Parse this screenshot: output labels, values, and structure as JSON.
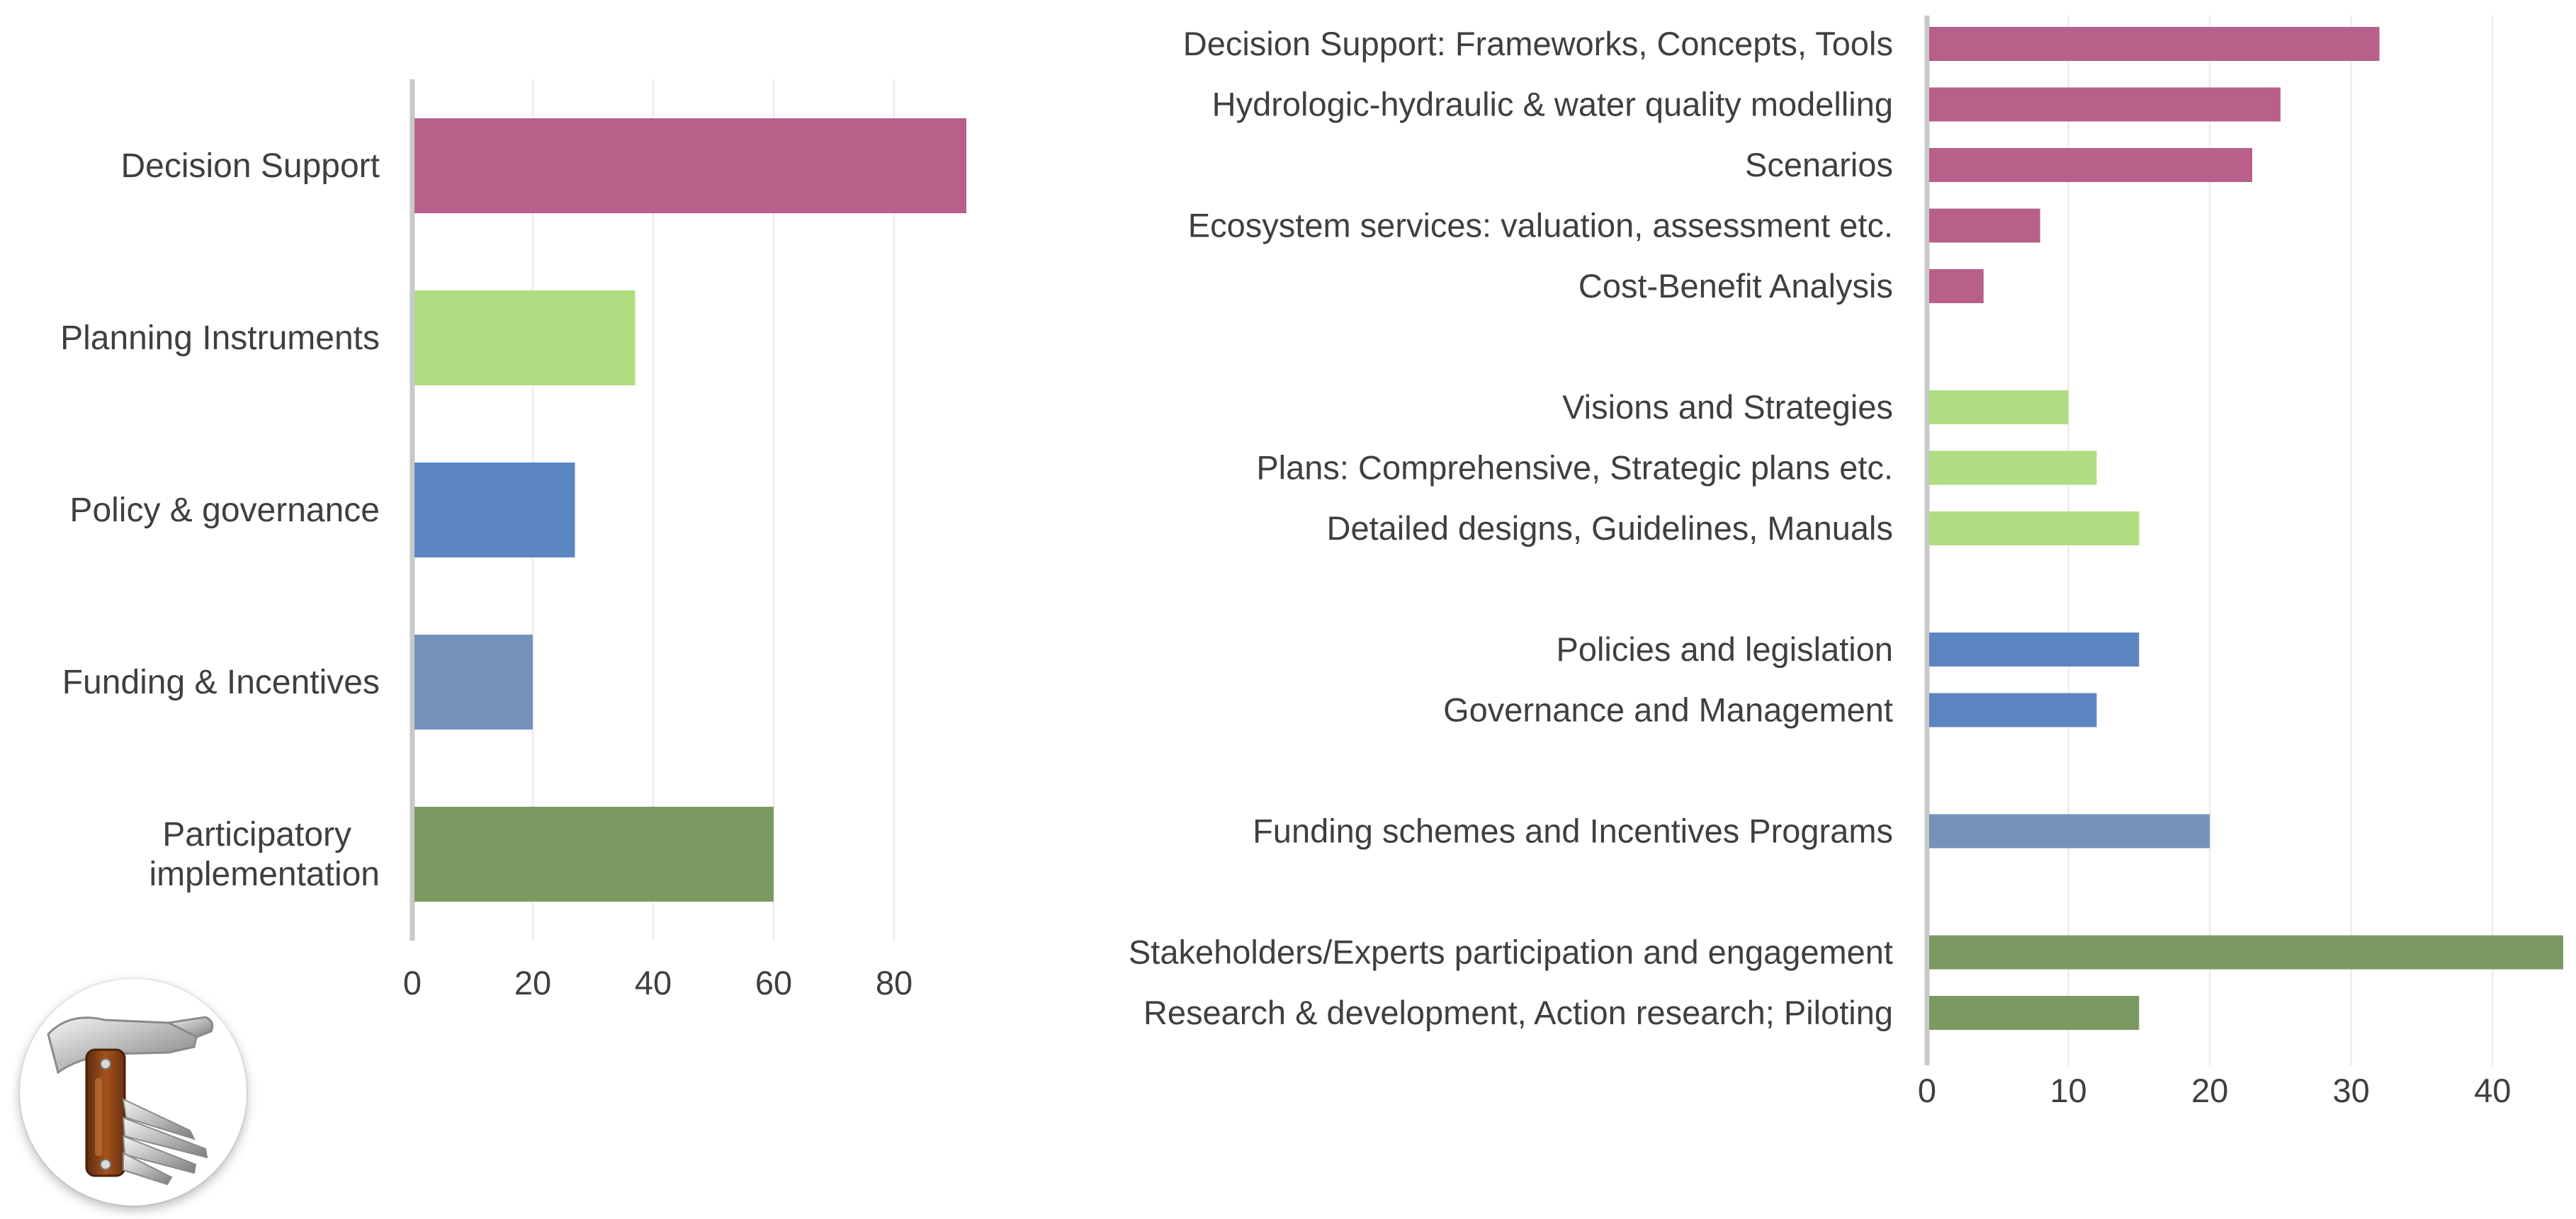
{
  "chart_data": [
    {
      "type": "bar",
      "orientation": "horizontal",
      "title": "",
      "xlabel": "",
      "ylabel": "",
      "xlim": [
        0,
        92
      ],
      "ticks": [
        0,
        20,
        40,
        60,
        80
      ],
      "grid": true,
      "categories": [
        {
          "label": "Decision Support",
          "value": 92,
          "color": "#b8608a"
        },
        {
          "label": "Planning  Instruments",
          "value": 37,
          "color": "#b1dd82"
        },
        {
          "label": "Policy & governance",
          "value": 27,
          "color": "#5b86c2"
        },
        {
          "label": "Funding & Incentives",
          "value": 20,
          "color": "#7592bd"
        },
        {
          "label": "Participatory implementation",
          "lines": [
            "Participatory",
            "implementation"
          ],
          "value": 60,
          "color": "#7a9a62"
        }
      ]
    },
    {
      "type": "bar",
      "orientation": "horizontal",
      "title": "",
      "xlabel": "",
      "ylabel": "",
      "xlim": [
        0,
        45
      ],
      "ticks": [
        0,
        10,
        20,
        30,
        40
      ],
      "grid": true,
      "groups": [
        {
          "color": "#b8608a",
          "items": [
            {
              "label": "Decision Support: Frameworks, Concepts, Tools",
              "value": 32
            },
            {
              "label": "Hydrologic-hydraulic  & water quality  modelling",
              "value": 25
            },
            {
              "label": "Scenarios",
              "value": 23
            },
            {
              "label": "Ecosystem services: valuation,  assessment etc.",
              "value": 8
            },
            {
              "label": "Cost-Benefit Analysis",
              "value": 4
            }
          ]
        },
        {
          "color": "#b1dd82",
          "items": [
            {
              "label": "Visions and Strategies",
              "value": 10
            },
            {
              "label": "Plans: Comprehensive, Strategic plans etc.",
              "value": 12
            },
            {
              "label": "Detailed designs, Guidelines, Manuals",
              "value": 15
            }
          ]
        },
        {
          "color": "#5b86c2",
          "items": [
            {
              "label": "Policies and legislation",
              "value": 15
            },
            {
              "label": "Governance and Management",
              "value": 12
            }
          ]
        },
        {
          "color": "#7592bd",
          "items": [
            {
              "label": "Funding schemes and Incentives Programs",
              "value": 20
            }
          ]
        },
        {
          "color": "#7a9a62",
          "items": [
            {
              "label": "Stakeholders/Experts  participation  and engagement",
              "value": 45
            },
            {
              "label": "Research & development, Action research;  Piloting",
              "value": 15
            }
          ]
        }
      ]
    }
  ],
  "badge": {
    "icon": "multitool-hammer-icon"
  }
}
